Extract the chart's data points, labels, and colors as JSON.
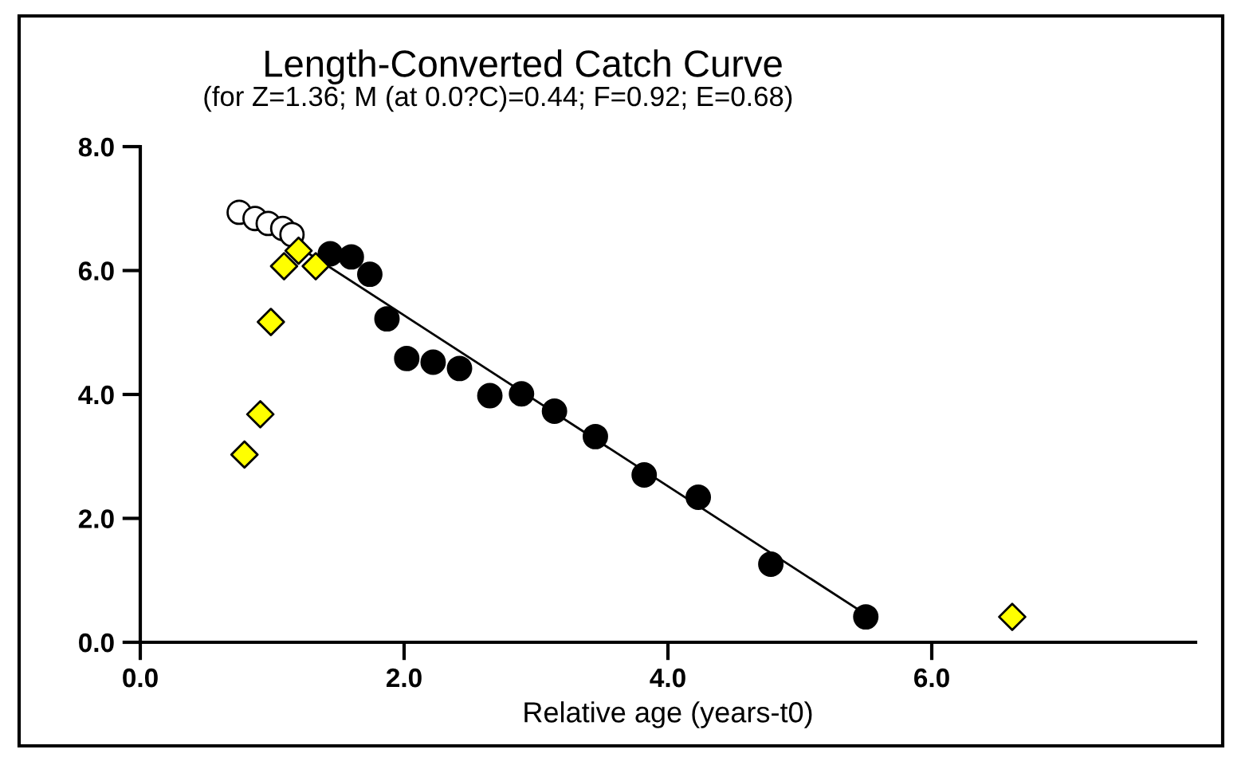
{
  "chart_data": {
    "type": "scatter",
    "title": "Length-Converted Catch Curve",
    "subtitle": "(for Z=1.36; M (at 0.0?C)=0.44; F=0.92; E=0.68)",
    "xlabel": "Relative age (years-t0)",
    "xlim": [
      0,
      8
    ],
    "ylim": [
      0,
      8
    ],
    "xticks": [
      {
        "value": 0,
        "label": "0.0"
      },
      {
        "value": 2,
        "label": "2.0"
      },
      {
        "value": 4,
        "label": "4.0"
      },
      {
        "value": 6,
        "label": "6.0"
      }
    ],
    "yticks": [
      {
        "value": 0,
        "label": "0.0"
      },
      {
        "value": 2,
        "label": "2.0"
      },
      {
        "value": 4,
        "label": "4.0"
      },
      {
        "value": 6,
        "label": "6.0"
      },
      {
        "value": 8,
        "label": "8.0"
      }
    ],
    "grid": false,
    "legend": false,
    "series": [
      {
        "type": "line",
        "color": "#000000",
        "marker": "none",
        "x": [
          0.75,
          5.5
        ],
        "values": [
          7.0,
          0.45
        ]
      },
      {
        "color": "#ffffff",
        "marker": "circle",
        "x": [
          0.75,
          0.87,
          0.97,
          1.08,
          1.15
        ],
        "values": [
          6.94,
          6.84,
          6.76,
          6.68,
          6.58
        ]
      },
      {
        "color": "#000000",
        "marker": "circle",
        "x": [
          1.44,
          1.6,
          1.74,
          1.87,
          2.02,
          2.22,
          2.42,
          2.65,
          2.89,
          3.14,
          3.45,
          3.82,
          4.23,
          4.78,
          5.5
        ],
        "values": [
          6.27,
          6.22,
          5.94,
          5.22,
          4.58,
          4.52,
          4.42,
          3.98,
          4.01,
          3.73,
          3.32,
          2.7,
          2.34,
          1.26,
          0.41
        ]
      },
      {
        "color": "#ffff00",
        "marker": "diamond",
        "x": [
          0.79,
          0.91,
          0.99,
          1.09,
          1.2,
          1.33,
          6.61
        ],
        "values": [
          3.03,
          3.68,
          5.17,
          6.07,
          6.32,
          6.07,
          0.41
        ]
      }
    ]
  }
}
